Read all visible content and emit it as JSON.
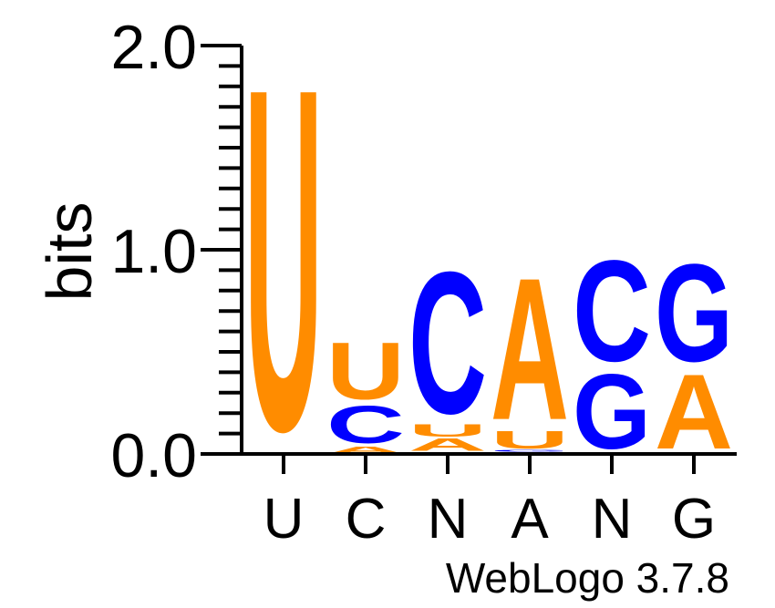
{
  "chart_data": {
    "type": "sequence-logo",
    "ylabel": "bits",
    "ylim": [
      0,
      2.0
    ],
    "ytick_labels": [
      "0.0",
      "1.0",
      "2.0"
    ],
    "yticks": [
      0.0,
      1.0,
      2.0
    ],
    "positions": [
      {
        "label": "U",
        "letters": [
          {
            "char": "U",
            "bits": 1.93
          }
        ]
      },
      {
        "label": "C",
        "letters": [
          {
            "char": "A",
            "bits": 0.04
          },
          {
            "char": "C",
            "bits": 0.21
          },
          {
            "char": "U",
            "bits": 0.32
          }
        ]
      },
      {
        "label": "N",
        "letters": [
          {
            "char": "G",
            "bits": 0.01
          },
          {
            "char": "A",
            "bits": 0.07
          },
          {
            "char": "U",
            "bits": 0.07
          },
          {
            "char": "C",
            "bits": 0.8
          }
        ]
      },
      {
        "label": "A",
        "letters": [
          {
            "char": "C",
            "bits": 0.01
          },
          {
            "char": "G",
            "bits": 0.01
          },
          {
            "char": "U",
            "bits": 0.1
          },
          {
            "char": "A",
            "bits": 0.8
          }
        ]
      },
      {
        "label": "N",
        "letters": [
          {
            "char": "G",
            "bits": 0.42
          },
          {
            "char": "C",
            "bits": 0.57
          }
        ]
      },
      {
        "label": "G",
        "letters": [
          {
            "char": "A",
            "bits": 0.42
          },
          {
            "char": "G",
            "bits": 0.55
          }
        ]
      }
    ],
    "colors": {
      "A": "#ff8c00",
      "U": "#ff8c00",
      "C": "#0000ff",
      "G": "#0000ff"
    }
  },
  "footer": {
    "credit": "WebLogo 3.7.8"
  }
}
